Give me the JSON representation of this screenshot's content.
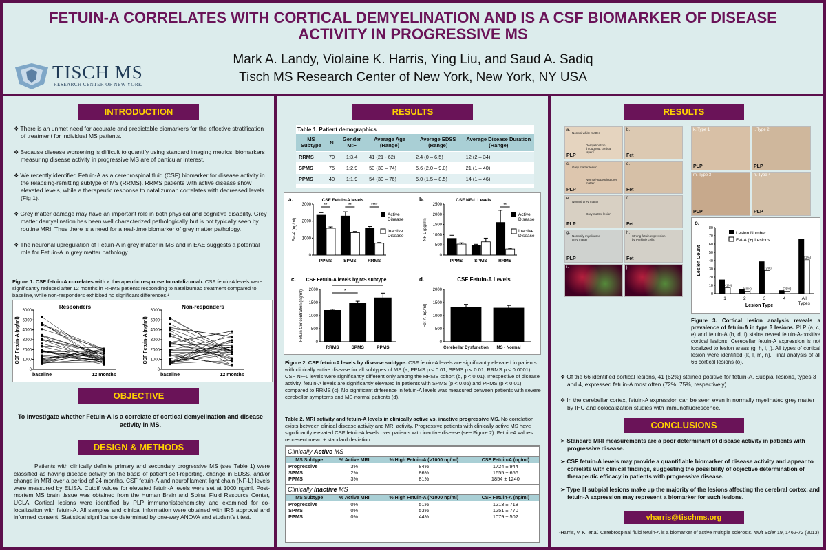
{
  "header": {
    "title_line1": "FETUIN-A CORRELATES WITH CORTICAL DEMYELINATION AND IS A CSF BIOMARKER OF DISEASE",
    "title_line2": "ACTIVITY IN PROGRESSIVE MS",
    "authors": "Mark A. Landy, Violaine K. Harris, Ying Liu, and Saud A. Sadiq",
    "affiliation": "Tisch MS Research Center of New York, New York, NY USA",
    "logo_text": "TISCH MS",
    "logo_subtext": "RESEARCH CENTER OF NEW YORK"
  },
  "introduction": {
    "heading": "INTRODUCTION",
    "bullets": [
      "There is an unmet need for accurate and predictable biomarkers for the effective stratification of treatment for individual MS patients.",
      "Because disease worsening is difficult to quantify using standard imaging metrics, biomarkers measuring disease activity in progressive MS are of particular interest.",
      "We recently identified Fetuin-A as a cerebrospinal fluid (CSF) biomarker for disease activity in the relapsing-remitting subtype of MS (RRMS). RRMS patients with active disease show elevated levels, while a therapeutic response to natalizumab correlates with decreased levels (Fig 1).",
      "Grey matter damage may have an important role in both physical and cognitive disability. Grey matter demyelination has been well characterized pathologically but is not typically seen by routine MRI. Thus there is a need for a real-time biomarker of grey matter pathology.",
      "The neuronal upregulation of Fetuin-A in grey matter in MS and in EAE suggests a potential role for Fetuin-A in grey matter pathology"
    ],
    "fig1_title": "Figure 1. CSF fetuin-A correlates with a therapeutic response to natalizumab.",
    "fig1_text": " CSF fetuin-A levels were significantly reduced after 12 months in RRMS patients responding to natalizumab treatment compared to baseline, while non-responders exhibited no significant differences.¹"
  },
  "fig1": {
    "responders_title": "Responders",
    "nonresponders_title": "Non-responders",
    "ylabel": "CSF Fetuin-A (ng/ml)",
    "xticks": [
      "baseline",
      "12 months"
    ],
    "yticks": [
      "0",
      "1000",
      "2000",
      "3000",
      "4000",
      "5000",
      "6000"
    ]
  },
  "objective": {
    "heading": "OBJECTIVE",
    "text": "To investigate whether Fetuin-A is a correlate of cortical demyelination and disease activity in MS."
  },
  "methods": {
    "heading": "DESIGN & METHODS",
    "text": "Patients with clinically definite primary and secondary progressive MS (see Table 1) were classified as having disease activity on the basis of patient self-reporting, change in EDSS, and/or change in MRI over a period of 24 months. CSF fetuin-A and neurofilament light chain (NF-L) levels were measured by ELISA. Cutoff values for elevated fetuin-A levels were set at 1000 ng/ml. Post-mortem MS brain tissue was obtained from the Human Brain and Spinal Fluid Resource Center, UCLA. Cortical lesions were identified by PLP immunohistochemistry and examined for co-localization with fetuin-A. All samples and clinical information were obtained with IRB approval and informed consent. Statistical significance determined by one-way ANOVA and student's t test."
  },
  "results_mid": {
    "heading": "RESULTS",
    "table1": {
      "title": "Table 1.  Patient demographics",
      "headers": [
        "MS Subtype",
        "N",
        "Gender M:F",
        "Average Age (Range)",
        "Average EDSS (Range)",
        "Average Disease Duration (Range)"
      ],
      "rows": [
        [
          "RRMS",
          "70",
          "1:3.4",
          "41 (21 - 62)",
          "2.4 (0 – 6.5)",
          "12 (2 – 34)"
        ],
        [
          "SPMS",
          "75",
          "1:2.9",
          "53 (30 – 74)",
          "5.6 (2.0 – 9.0)",
          "21 (1 – 40)"
        ],
        [
          "PPMS",
          "40",
          "1:1.9",
          "54 (30 – 76)",
          "5.0 (1.5 – 8.5)",
          "14 (1 – 46)"
        ]
      ]
    },
    "fig2_title": "Figure 2. CSF fetuin-A levels by disease subtype.",
    "fig2_text": " CSF fetuin-A levels are significantly elevated in patients with clinically active disease for all subtypes of MS (a, PPMS p < 0.01, SPMS p < 0.01, RRMS p < 0.0001). CSF NF-L levels were significantly different only among the RRMS cohort (b, p < 0.01). Irrespective of disease activity, fetuin-A levels are significantly elevated in patients with SPMS (p < 0.05) and PPMS (p < 0.01) compared to RRMS (c). No significant difference in fetuin-A levels was measured between patients with severe cerebellar symptoms and MS-normal patients (d).",
    "table2_title": "Table 2. MRI activity and fetuin-A levels in clinically active vs. inactive progressive MS.",
    "table2_text": " No correlation exists between clinical disease activity and MRI activity. Progressive patients with clinically active MS have significantly elevated CSF fetuin-A levels over patients with inactive disease (see Figure 2). Fetuin-A values represent mean ± standard deviation .",
    "active_label_a": "Clinically ",
    "active_label_b": "Active",
    "active_label_c": " MS",
    "inactive_label_a": "Clinically ",
    "inactive_label_b": "Inactive",
    "inactive_label_c": " MS",
    "table2_headers": [
      "MS Subtype",
      "% Active MRI",
      "% High Fetuin-A (>1000 ng/ml)",
      "CSF Fetuin-A (ng/ml)"
    ],
    "table2_active": [
      [
        "Progressive",
        "3%",
        "84%",
        "1724 ± 944"
      ],
      [
        "SPMS",
        "2%",
        "86%",
        "1655 ± 656"
      ],
      [
        "PPMS",
        "3%",
        "81%",
        "1854 ± 1240"
      ]
    ],
    "table2_inactive": [
      [
        "Progressive",
        "0%",
        "51%",
        "1213 ± 718"
      ],
      [
        "SPMS",
        "0%",
        "53%",
        "1251 ± 770"
      ],
      [
        "PPMS",
        "0%",
        "44%",
        "1079 ± 502"
      ]
    ]
  },
  "fig2_panels": {
    "a_label": "a.",
    "a_title": "CSF Fetuin-A levels",
    "a_ylabel": "Fet-A (ng/ml)",
    "b_label": "b.",
    "b_title": "CSF NF-L Levels",
    "b_ylabel": "NF-L (pg/ml)",
    "c_label": "c.",
    "c_title": "CSF Fetuin-A levels by MS subtype",
    "c_ylabel": "Fetuin Concentration (ng/ml)",
    "d_label": "d.",
    "d_title": "CSF Fetuin-A Levels",
    "d_ylabel": "Fet-A (ng/ml)",
    "legend_active": "Active Disease",
    "legend_inactive": "Inactive Disease",
    "sig_ab_1": "**",
    "sig_ab_2": "**",
    "sig_ab_3": "****",
    "sig_b": "**",
    "sig_c1": "*",
    "sig_c2": "**"
  },
  "chart_data": [
    {
      "type": "bar",
      "title": "CSF Fetuin-A levels",
      "ylabel": "Fet-A (ng/ml)",
      "categories": [
        "PPMS",
        "SPMS",
        "RRMS"
      ],
      "ylim": [
        0,
        3000
      ],
      "yticks": [
        0,
        1000,
        2000,
        3000
      ],
      "series": [
        {
          "name": "Active Disease",
          "values": [
            2350,
            2300,
            1600
          ],
          "errors": [
            150,
            250,
            80
          ]
        },
        {
          "name": "Inactive Disease",
          "values": [
            1580,
            1320,
            700
          ],
          "errors": [
            80,
            70,
            40
          ]
        }
      ]
    },
    {
      "type": "bar",
      "title": "CSF NF-L Levels",
      "ylabel": "NF-L (pg/ml)",
      "categories": [
        "PPMS",
        "SPMS",
        "RRMS"
      ],
      "ylim": [
        0,
        2500
      ],
      "yticks": [
        0,
        500,
        1000,
        1500,
        2000,
        2500
      ],
      "series": [
        {
          "name": "Active Disease",
          "values": [
            820,
            480,
            1600
          ],
          "errors": [
            150,
            50,
            600
          ]
        },
        {
          "name": "Inactive Disease",
          "values": [
            540,
            650,
            300
          ],
          "errors": [
            60,
            180,
            40
          ]
        }
      ]
    },
    {
      "type": "bar",
      "title": "CSF Fetuin-A levels by MS subtype",
      "ylabel": "Fetuin Concentration (ng/ml)",
      "categories": [
        "RRMS",
        "SPMS",
        "PPMS"
      ],
      "ylim": [
        0,
        2000
      ],
      "yticks": [
        0,
        500,
        1000,
        1500,
        2000
      ],
      "series": [
        {
          "name": "",
          "values": [
            1200,
            1470,
            1680
          ],
          "errors": [
            40,
            80,
            180
          ]
        }
      ]
    },
    {
      "type": "bar",
      "title": "CSF Fetuin-A Levels",
      "ylabel": "Fet-A (ng/ml)",
      "categories": [
        "Cerebellar Dysfunction",
        "MS - Normal"
      ],
      "ylim": [
        0,
        2000
      ],
      "yticks": [
        0,
        500,
        1000,
        1500,
        2000
      ],
      "series": [
        {
          "name": "",
          "values": [
            1310,
            1290
          ],
          "errors": [
            120,
            100
          ]
        }
      ]
    },
    {
      "type": "bar",
      "title": "",
      "ylabel": "Lesion Count",
      "xlabel": "Lesion  Type",
      "categories": [
        "1",
        "2",
        "3",
        "4",
        "All Types"
      ],
      "ylim": [
        0,
        80
      ],
      "yticks": [
        0,
        10,
        20,
        30,
        40,
        50,
        60,
        70,
        80
      ],
      "series": [
        {
          "name": "Lesion Number",
          "values": [
            17,
            5,
            39,
            4,
            66
          ]
        },
        {
          "name": "Fet-A (+) Lesions",
          "values": [
            7,
            3,
            28,
            3,
            41
          ]
        }
      ],
      "annotations": [
        "(41%)",
        "(60%)",
        "(72%)",
        "(75%)",
        "(62%)"
      ]
    }
  ],
  "fig3_panels": {
    "labels": [
      "a.",
      "b.",
      "c.",
      "d.",
      "e.",
      "f.",
      "g.",
      "h.",
      "i.",
      "j."
    ],
    "bottom": [
      "PLP",
      "Fet",
      "PLP",
      "Fet",
      "PLP",
      "Fet",
      "PLP",
      "Fet",
      "",
      ""
    ],
    "type_labels": [
      "k. Type 1",
      "l. Type 2",
      "m. Type 3",
      "n. Type 4"
    ],
    "type_bottom": [
      "PLP",
      "PLP",
      "PLP",
      "PLP"
    ],
    "o_label": "o.",
    "annot_a1": "Normal white matter",
    "annot_a2": "Demyelination throughout cortical layers",
    "annot_c1": "Grey matter lesion",
    "annot_c2": "Normal-appearing grey matter",
    "annot_e1": "Normal grey matter",
    "annot_e2": "Grey matter lesion",
    "annot_g": "Normally myelinated grey matter",
    "annot_h": "Strong fetuin expression by Purkinje cells"
  },
  "results_right": {
    "heading": "RESULTS",
    "fig3_title": "Figure 3. Cortical lesion analysis reveals a prevalence of fetuin-A in type 3 lesions.",
    "fig3_text": " PLP (a, c, e) and fetuin-A (b, d, f) stains reveal fetuin-A-positive cortical lesions. Cerebellar fetuin-A expression is not localized to lesion areas (g, h, i, j). All types of cortical lesion were identified (k, l, m, n). Final analysis of all 66 cortical lesions (o).",
    "bullets": [
      "Of the 66 identified cortical lesions, 41 (62%) stained positive for fetuin-A. Subpial lesions, types 3 and 4, expressed fetuin-A most often (72%, 75%, respectively).",
      "In the cerebellar cortex, fetuin-A expression can be seen even in normally myelinated grey matter by IHC and colocalization studies with immunofluorescence."
    ]
  },
  "conclusions": {
    "heading": "CONCLUSIONS",
    "items": [
      "Standard MRI measurements are a poor determinant of disease activity in patients with progressive disease.",
      "CSF fetuin-A levels may provide a quantifiable biomarker of disease activity and appear to correlate with clinical findings, suggesting the possibility of objective determination of therapeutic efficacy in patients with progressive disease.",
      "Type III subpial lesions make up the majority of the lesions affecting the cerebral cortex, and fetuin-A expression may represent a biomarker for such lesions."
    ],
    "email": "vharris@tischms.org",
    "reference_a": "¹Harris, V. K. ",
    "reference_b": "et al.",
    "reference_c": " Cerebrospinal fluid fetuin-A is a biomarker of active multiple sclerosis. ",
    "reference_d": "Mult Scler",
    "reference_e": " 19, 1462-72 (2013)"
  },
  "colors": {
    "banner": "#6a1358",
    "banner_text": "#ffd200",
    "panel": "#dcecec",
    "border": "#5c0f4c"
  }
}
